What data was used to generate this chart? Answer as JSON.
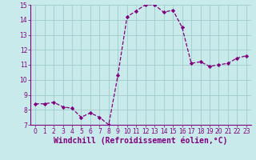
{
  "x": [
    0,
    1,
    2,
    3,
    4,
    5,
    6,
    7,
    8,
    9,
    10,
    11,
    12,
    13,
    14,
    15,
    16,
    17,
    18,
    19,
    20,
    21,
    22,
    23
  ],
  "y": [
    8.4,
    8.4,
    8.5,
    8.2,
    8.1,
    7.5,
    7.8,
    7.5,
    7.0,
    10.3,
    14.2,
    14.6,
    15.0,
    15.0,
    14.5,
    14.65,
    13.5,
    11.1,
    11.2,
    10.9,
    11.0,
    11.1,
    11.45,
    11.6
  ],
  "line_color": "#800080",
  "marker": "D",
  "marker_size": 2.2,
  "bg_color": "#c8eaea",
  "grid_color": "#a0cccc",
  "xlabel": "Windchill (Refroidissement éolien,°C)",
  "xlabel_color": "#800080",
  "tick_color": "#800080",
  "ylim": [
    7,
    15
  ],
  "xlim_min": -0.5,
  "xlim_max": 23.5,
  "yticks": [
    7,
    8,
    9,
    10,
    11,
    12,
    13,
    14,
    15
  ],
  "xticks": [
    0,
    1,
    2,
    3,
    4,
    5,
    6,
    7,
    8,
    9,
    10,
    11,
    12,
    13,
    14,
    15,
    16,
    17,
    18,
    19,
    20,
    21,
    22,
    23
  ],
  "tick_fontsize": 5.5,
  "xlabel_fontsize": 7.0,
  "linewidth": 0.9
}
